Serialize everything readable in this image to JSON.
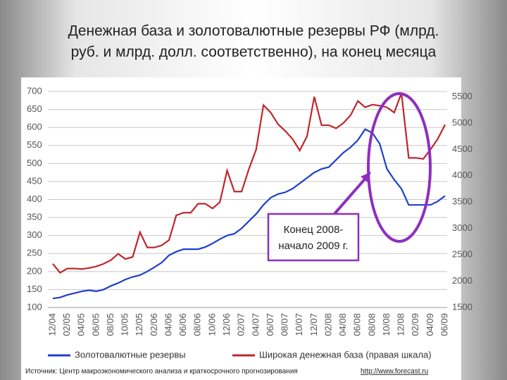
{
  "chart_data": {
    "type": "line",
    "title": [
      "Денежная база и золотовалютные резервы РФ (млрд.",
      "руб. и млрд. долл. соответственно), на конец месяца"
    ],
    "categories": [
      "12/04",
      null,
      "02/05",
      null,
      "04/05",
      null,
      "06/05",
      null,
      "08/05",
      null,
      "10/05",
      null,
      "12/05",
      null,
      "02/06",
      null,
      "04/06",
      null,
      "06/06",
      null,
      "08/06",
      null,
      "10/06",
      null,
      "12/06",
      null,
      "02/07",
      null,
      "04/07",
      null,
      "06/07",
      null,
      "08/07",
      null,
      "10/07",
      null,
      "12/07",
      null,
      "02/08",
      null,
      "04/08",
      null,
      "06/08",
      null,
      "08/08",
      null,
      "10/08",
      null,
      "12/08",
      null,
      "02/09",
      null,
      "04/09",
      null,
      "06/09"
    ],
    "series": [
      {
        "name": "Золотовалютные резервы",
        "color": "#1f3fd0",
        "values": [
          125,
          128,
          135,
          140,
          145,
          148,
          145,
          150,
          160,
          168,
          178,
          185,
          190,
          200,
          212,
          225,
          245,
          255,
          262,
          262,
          262,
          268,
          278,
          290,
          300,
          305,
          320,
          340,
          360,
          385,
          405,
          415,
          420,
          430,
          445,
          460,
          475,
          485,
          490,
          510,
          530,
          545,
          565,
          595,
          585,
          555,
          485,
          455,
          430,
          385,
          385,
          385,
          385,
          395,
          410
        ]
      },
      {
        "name": "Широкая денежная база (правая шкала)",
        "color": "#c0262b",
        "axis": "y2",
        "values": [
          2330,
          2160,
          2240,
          2240,
          2230,
          2250,
          2280,
          2330,
          2400,
          2520,
          2420,
          2460,
          2930,
          2640,
          2640,
          2680,
          2780,
          3250,
          3300,
          3300,
          3470,
          3470,
          3380,
          3500,
          4100,
          3700,
          3700,
          4130,
          4500,
          5340,
          5200,
          4980,
          4850,
          4700,
          4480,
          4750,
          5500,
          4960,
          4960,
          4900,
          5000,
          5150,
          5420,
          5300,
          5350,
          5330,
          5300,
          5200,
          5570,
          4340,
          4340,
          4320,
          4500,
          4700,
          4970
        ]
      }
    ],
    "ylim": [
      100,
      700
    ],
    "yticks": [
      100,
      150,
      200,
      250,
      300,
      350,
      400,
      450,
      500,
      550,
      600,
      650,
      700
    ],
    "y2lim": [
      1500,
      5600
    ],
    "y2ticks": [
      1500,
      2000,
      2500,
      3000,
      3500,
      4000,
      4500,
      5000,
      5500
    ],
    "grid": true,
    "legend": "bottom",
    "annotations": [
      "Конец 2008-",
      "начало 2009 г."
    ],
    "source": "Источник: Центр макроэкономического анализа и краткосрочного прогнозирования",
    "source_url": "http://www.forecast.ru"
  }
}
